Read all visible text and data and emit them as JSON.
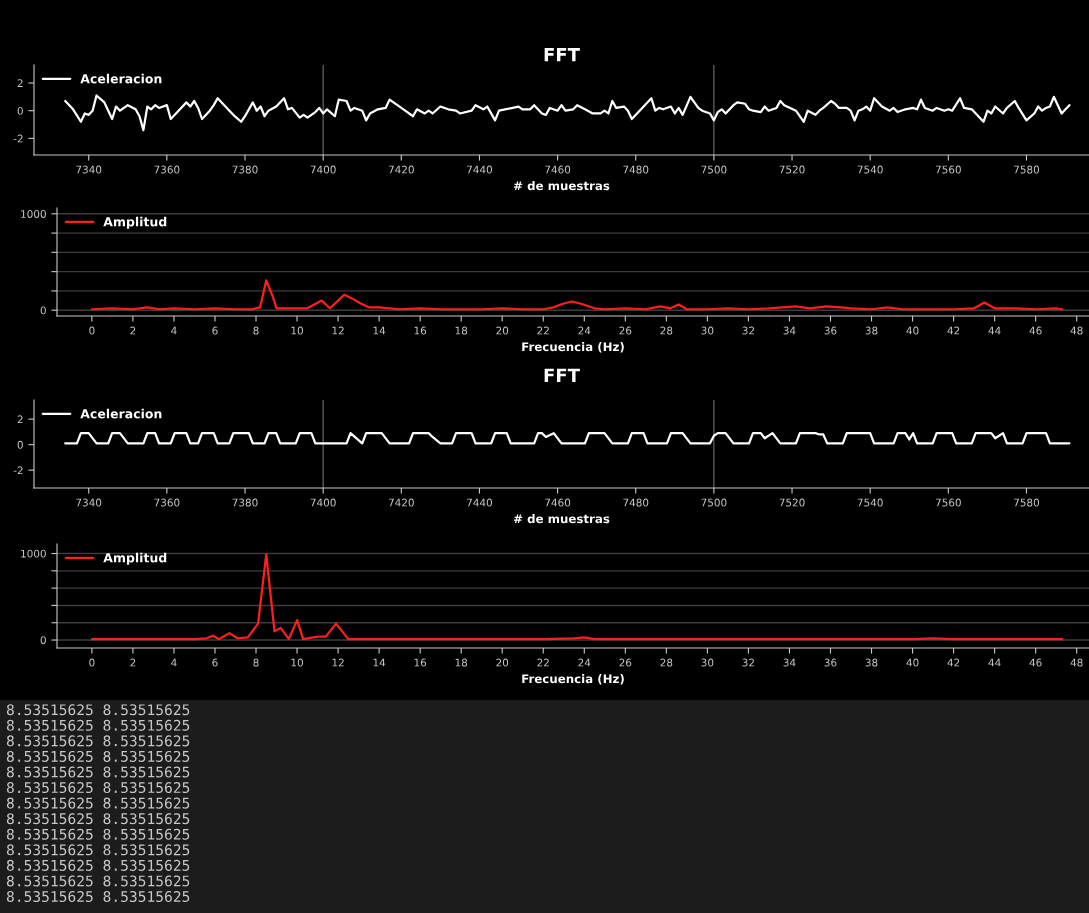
{
  "chart_data": [
    {
      "type": "line",
      "title": "FFT",
      "xlabel": "# de muestras",
      "xlim": [
        7326,
        7596
      ],
      "ylim": [
        -3.2,
        3.3
      ],
      "xticks": [
        7340,
        7360,
        7380,
        7400,
        7420,
        7440,
        7460,
        7480,
        7500,
        7520,
        7540,
        7560,
        7580
      ],
      "yticks": [
        -2,
        0,
        2
      ],
      "legend": "top left",
      "ref_lines": [
        {
          "axis": "x",
          "value": 7400,
          "color": "#707070"
        },
        {
          "axis": "x",
          "value": 7500,
          "color": "#707070"
        }
      ],
      "x": [
        7334,
        7336,
        7338,
        7339,
        7340,
        7341,
        7342,
        7344,
        7345,
        7346,
        7347,
        7348,
        7350,
        7352,
        7353,
        7354,
        7355,
        7356,
        7357,
        7358,
        7360,
        7361,
        7363,
        7365,
        7366,
        7367,
        7368,
        7369,
        7371,
        7372,
        7373,
        7375,
        7376,
        7377,
        7379,
        7380,
        7382,
        7383,
        7384,
        7385,
        7386,
        7388,
        7390,
        7391,
        7392,
        7394,
        7395,
        7396,
        7398,
        7399,
        7400,
        7401,
        7403,
        7404,
        7406,
        7407,
        7408,
        7410,
        7411,
        7412,
        7414,
        7416,
        7417,
        7419,
        7420,
        7421,
        7423,
        7424,
        7426,
        7427,
        7428,
        7430,
        7432,
        7434,
        7435,
        7438,
        7439,
        7441,
        7442,
        7444,
        7445,
        7450,
        7451,
        7453,
        7454,
        7456,
        7457,
        7458,
        7460,
        7461,
        7462,
        7464,
        7465,
        7467,
        7469,
        7471,
        7472,
        7473,
        7474,
        7475,
        7477,
        7478,
        7479,
        7481,
        7484,
        7485,
        7486,
        7487,
        7489,
        7490,
        7491,
        7492,
        7494,
        7496,
        7497,
        7499,
        7500,
        7501,
        7502,
        7503,
        7505,
        7506,
        7508,
        7509,
        7510,
        7512,
        7513,
        7514,
        7516,
        7517,
        7518,
        7521,
        7523,
        7524,
        7526,
        7527,
        7528,
        7530,
        7531,
        7532,
        7534,
        7535,
        7536,
        7537,
        7538,
        7539,
        7540,
        7541,
        7543,
        7545,
        7546,
        7547,
        7549,
        7551,
        7552,
        7553,
        7554,
        7556,
        7557,
        7559,
        7560,
        7561,
        7563,
        7564,
        7566,
        7569,
        7570,
        7571,
        7572,
        7574,
        7575,
        7577,
        7578,
        7580,
        7582,
        7583,
        7584,
        7585,
        7586,
        7587,
        7589,
        7590,
        7591
      ],
      "series": [
        {
          "name": "Aceleracion",
          "color": "#ffffff",
          "values": [
            0.7,
            0.1,
            -0.8,
            -0.2,
            -0.3,
            0,
            1.1,
            0.6,
            0,
            -0.6,
            0.3,
            0,
            0.4,
            0.1,
            -0.4,
            -1.4,
            0.3,
            0.1,
            0.4,
            0.2,
            0.4,
            -0.6,
            0,
            0.6,
            0.3,
            0.7,
            0.2,
            -0.6,
            0,
            0.4,
            0.9,
            0.3,
            0,
            -0.3,
            -0.8,
            -0.4,
            0.6,
            0,
            0.3,
            -0.4,
            0,
            0.3,
            0.9,
            0.1,
            0.2,
            -0.5,
            -0.3,
            -0.5,
            -0.1,
            0.2,
            -0.2,
            0.1,
            -0.4,
            0.8,
            0.7,
            0,
            0.2,
            0,
            -0.7,
            -0.2,
            0.1,
            0.2,
            0.8,
            0.4,
            0.2,
            0,
            -0.4,
            0.1,
            -0.2,
            0,
            -0.2,
            0.3,
            0.1,
            0,
            -0.2,
            0,
            0.4,
            0.1,
            0.3,
            -0.7,
            0,
            0.3,
            0.1,
            0.1,
            0.4,
            -0.2,
            -0.3,
            0.2,
            0,
            0.4,
            0,
            0.1,
            0.4,
            0.1,
            -0.2,
            -0.2,
            0,
            -0.2,
            0.7,
            0.2,
            0.3,
            0,
            -0.6,
            0,
            0.9,
            0,
            0.2,
            0.1,
            0.3,
            -0.2,
            0.2,
            -0.3,
            1.0,
            0.2,
            0,
            -0.2,
            -0.7,
            -0.1,
            0.1,
            -0.2,
            0.4,
            0.6,
            0.5,
            0.1,
            0,
            -0.1,
            0.3,
            0,
            0.2,
            0.7,
            0.4,
            0,
            -0.8,
            0,
            -0.3,
            0,
            0.2,
            0.7,
            0.5,
            0.2,
            0.2,
            0,
            -0.7,
            0,
            0.1,
            0.3,
            0,
            0.9,
            0.3,
            0,
            0.2,
            -0.1,
            0.1,
            0.2,
            0.1,
            0.8,
            0.2,
            0,
            0.2,
            0,
            0.1,
            0,
            0.9,
            0.2,
            0.1,
            -0.8,
            0,
            -0.2,
            0.3,
            -0.2,
            0.2,
            0.7,
            0.2,
            -0.7,
            -0.2,
            0.3,
            0,
            0.2,
            0.3,
            1.0,
            -0.2,
            0.1,
            0.4
          ]
        }
      ]
    },
    {
      "type": "line",
      "xlabel": "Frecuencia (Hz)",
      "xlim": [
        -1.7,
        48.6
      ],
      "ylim": [
        -60,
        1060
      ],
      "xticks": [
        0,
        2,
        4,
        6,
        8,
        10,
        12,
        14,
        16,
        18,
        20,
        22,
        24,
        26,
        28,
        30,
        32,
        34,
        36,
        38,
        40,
        42,
        44,
        46,
        48
      ],
      "yticks": [
        0,
        {
          "value": 200,
          "label": null
        },
        {
          "value": 400,
          "label": null
        },
        {
          "value": 600,
          "label": null
        },
        {
          "value": 800,
          "label": null
        },
        1000
      ],
      "grid": "y",
      "legend": "top left",
      "x": [
        0,
        1,
        2,
        2.7,
        3.3,
        4,
        5,
        6,
        7,
        7.8,
        8.2,
        8.5,
        8.8,
        9,
        9.5,
        10,
        10.5,
        11.2,
        11.6,
        12,
        12.3,
        12.7,
        13.1,
        13.5,
        14,
        15,
        16,
        17,
        18,
        19,
        20,
        21,
        22,
        22.5,
        23,
        23.4,
        23.8,
        24.5,
        25,
        26,
        27,
        27.7,
        28.2,
        28.6,
        29,
        30,
        31,
        32,
        33,
        34.3,
        35,
        35.8,
        36.5,
        37,
        38,
        38.8,
        39.5,
        40,
        41,
        42,
        43,
        43.5,
        44,
        45,
        46,
        47,
        47.3
      ],
      "series": [
        {
          "name": "Amplitud",
          "color": "#ff1e1e",
          "values": [
            10,
            20,
            10,
            30,
            10,
            20,
            10,
            20,
            10,
            10,
            30,
            310,
            150,
            20,
            20,
            20,
            20,
            100,
            20,
            100,
            160,
            120,
            70,
            30,
            30,
            10,
            20,
            10,
            10,
            10,
            20,
            10,
            10,
            30,
            70,
            90,
            70,
            20,
            10,
            20,
            10,
            40,
            20,
            60,
            10,
            10,
            20,
            10,
            20,
            40,
            20,
            40,
            30,
            20,
            10,
            30,
            10,
            10,
            10,
            10,
            20,
            80,
            20,
            20,
            10,
            20,
            10
          ]
        }
      ]
    },
    {
      "type": "line",
      "title": "FFT",
      "xlabel": "# de muestras",
      "xlim": [
        7326,
        7596
      ],
      "ylim": [
        -3.4,
        3.5
      ],
      "xticks": [
        7340,
        7360,
        7380,
        7400,
        7420,
        7440,
        7460,
        7480,
        7500,
        7520,
        7540,
        7560,
        7580
      ],
      "yticks": [
        -2,
        0,
        2
      ],
      "legend": "top left",
      "ref_lines": [
        {
          "axis": "x",
          "value": 7400,
          "color": "#707070"
        },
        {
          "axis": "x",
          "value": 7500,
          "color": "#707070"
        }
      ],
      "x": [
        7334,
        7337,
        7338,
        7340,
        7342,
        7345,
        7346,
        7348,
        7350,
        7354,
        7355,
        7357,
        7358,
        7361,
        7362,
        7365,
        7366,
        7368,
        7369,
        7372,
        7373,
        7376,
        7377,
        7381,
        7382,
        7385,
        7386,
        7388,
        7389,
        7393,
        7394,
        7397,
        7398,
        7406,
        7407,
        7410,
        7411,
        7415,
        7417,
        7422,
        7423,
        7427,
        7428,
        7430,
        7433,
        7434,
        7438,
        7439,
        7443,
        7444,
        7447,
        7448,
        7454,
        7455,
        7456,
        7457,
        7459,
        7461,
        7467,
        7468,
        7472,
        7474,
        7478,
        7479,
        7482,
        7483,
        7488,
        7489,
        7492,
        7494,
        7499,
        7500,
        7501,
        7503,
        7505,
        7509,
        7510,
        7512,
        7513,
        7515,
        7517,
        7521,
        7522,
        7526,
        7527,
        7528,
        7529,
        7533,
        7534,
        7540,
        7541,
        7546,
        7547,
        7549,
        7550,
        7551,
        7552,
        7556,
        7557,
        7561,
        7562,
        7566,
        7567,
        7571,
        7572,
        7574,
        7575,
        7579,
        7580,
        7585,
        7586,
        7591
      ],
      "series": [
        {
          "name": "Aceleracion",
          "color": "#ffffff",
          "values": [
            0.1,
            0.1,
            0.9,
            0.9,
            0.1,
            0.1,
            0.9,
            0.9,
            0.1,
            0.1,
            0.9,
            0.9,
            0.1,
            0.1,
            0.9,
            0.9,
            0.1,
            0.1,
            0.9,
            0.9,
            0.1,
            0.1,
            0.9,
            0.9,
            0.1,
            0.1,
            0.9,
            0.9,
            0.1,
            0.1,
            0.9,
            0.9,
            0.1,
            0.1,
            0.9,
            0.1,
            0.9,
            0.9,
            0.1,
            0.1,
            0.9,
            0.9,
            0.6,
            0.1,
            0.1,
            0.9,
            0.9,
            0.1,
            0.1,
            0.9,
            0.9,
            0.1,
            0.1,
            0.9,
            0.9,
            0.6,
            0.9,
            0.1,
            0.1,
            0.9,
            0.9,
            0.1,
            0.1,
            0.9,
            0.9,
            0.1,
            0.1,
            0.9,
            0.9,
            0.1,
            0.1,
            0.7,
            0.9,
            0.9,
            0.1,
            0.1,
            0.9,
            0.9,
            0.5,
            0.9,
            0.1,
            0.1,
            0.9,
            0.9,
            0.8,
            0.8,
            0.1,
            0.1,
            0.9,
            0.9,
            0.1,
            0.1,
            0.9,
            0.9,
            0.4,
            0.9,
            0.1,
            0.1,
            0.9,
            0.9,
            0.1,
            0.1,
            0.9,
            0.9,
            0.5,
            0.9,
            0.1,
            0.1,
            0.9,
            0.9,
            0.1,
            0.1
          ]
        }
      ]
    },
    {
      "type": "line",
      "xlabel": "Frecuencia (Hz)",
      "xlim": [
        -1.7,
        48.6
      ],
      "ylim": [
        -92,
        1110
      ],
      "xticks": [
        0,
        2,
        4,
        6,
        8,
        10,
        12,
        14,
        16,
        18,
        20,
        22,
        24,
        26,
        28,
        30,
        32,
        34,
        36,
        38,
        40,
        42,
        44,
        46,
        48
      ],
      "yticks": [
        0,
        {
          "value": 200,
          "label": null
        },
        {
          "value": 400,
          "label": null
        },
        {
          "value": 600,
          "label": null
        },
        {
          "value": 800,
          "label": null
        },
        1000
      ],
      "grid": "y",
      "legend": "top left",
      "x": [
        0,
        1,
        2,
        3,
        4,
        5,
        5.6,
        5.9,
        6.2,
        6.7,
        7.1,
        7.6,
        8.1,
        8.5,
        8.9,
        9.2,
        9.6,
        10,
        10.3,
        11,
        11.4,
        11.9,
        12.5,
        13,
        14,
        16,
        18,
        20,
        22,
        23.5,
        24,
        24.5,
        26,
        28,
        30,
        32,
        34,
        36,
        38,
        40,
        41,
        42,
        44,
        46,
        47.3
      ],
      "series": [
        {
          "name": "Amplitud",
          "color": "#ff1e1e",
          "values": [
            10,
            10,
            10,
            10,
            10,
            10,
            20,
            50,
            10,
            80,
            20,
            30,
            190,
            990,
            100,
            140,
            10,
            230,
            10,
            40,
            40,
            190,
            10,
            10,
            10,
            10,
            10,
            10,
            10,
            20,
            30,
            10,
            10,
            10,
            10,
            10,
            10,
            10,
            10,
            10,
            20,
            10,
            10,
            10,
            10
          ]
        }
      ]
    },
    {
      "type": "other",
      "annotations": [
        "8.53515625 8.53515625",
        "8.53515625 8.53515625",
        "8.53515625 8.53515625",
        "8.53515625 8.53515625",
        "8.53515625 8.53515625",
        "8.53515625 8.53515625",
        "8.53515625 8.53515625",
        "8.53515625 8.53515625",
        "8.53515625 8.53515625",
        "8.53515625 8.53515625",
        "8.53515625 8.53515625",
        "8.53515625 8.53515625",
        "8.53515625 8.53515625"
      ]
    }
  ]
}
